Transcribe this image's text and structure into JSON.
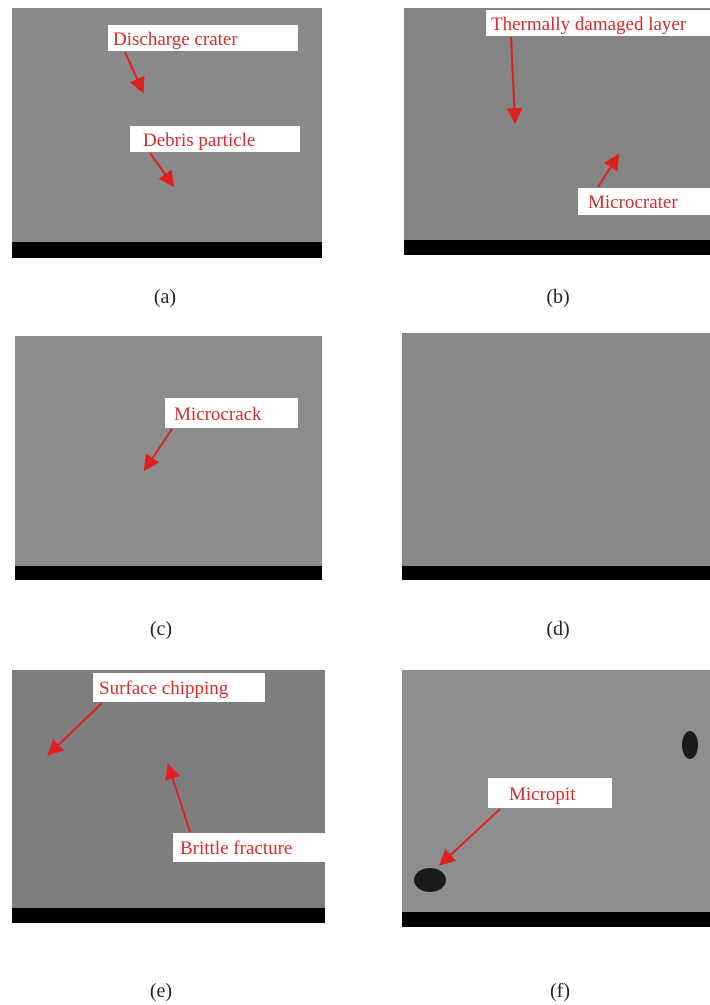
{
  "panels": [
    {
      "label": "(a)",
      "annotations": [
        "Discharge crater",
        "Debris particle"
      ]
    },
    {
      "label": "(b)",
      "annotations": [
        "Thermally damaged layer",
        "Microcrater"
      ]
    },
    {
      "label": "(c)",
      "annotations": [
        "Microcrack"
      ]
    },
    {
      "label": "(d)"
    },
    {
      "label": "(e)",
      "annotations": [
        "Surface chipping",
        "Brittle fracture"
      ]
    },
    {
      "label": "(f)",
      "annotations": [
        "Micropit"
      ]
    }
  ]
}
